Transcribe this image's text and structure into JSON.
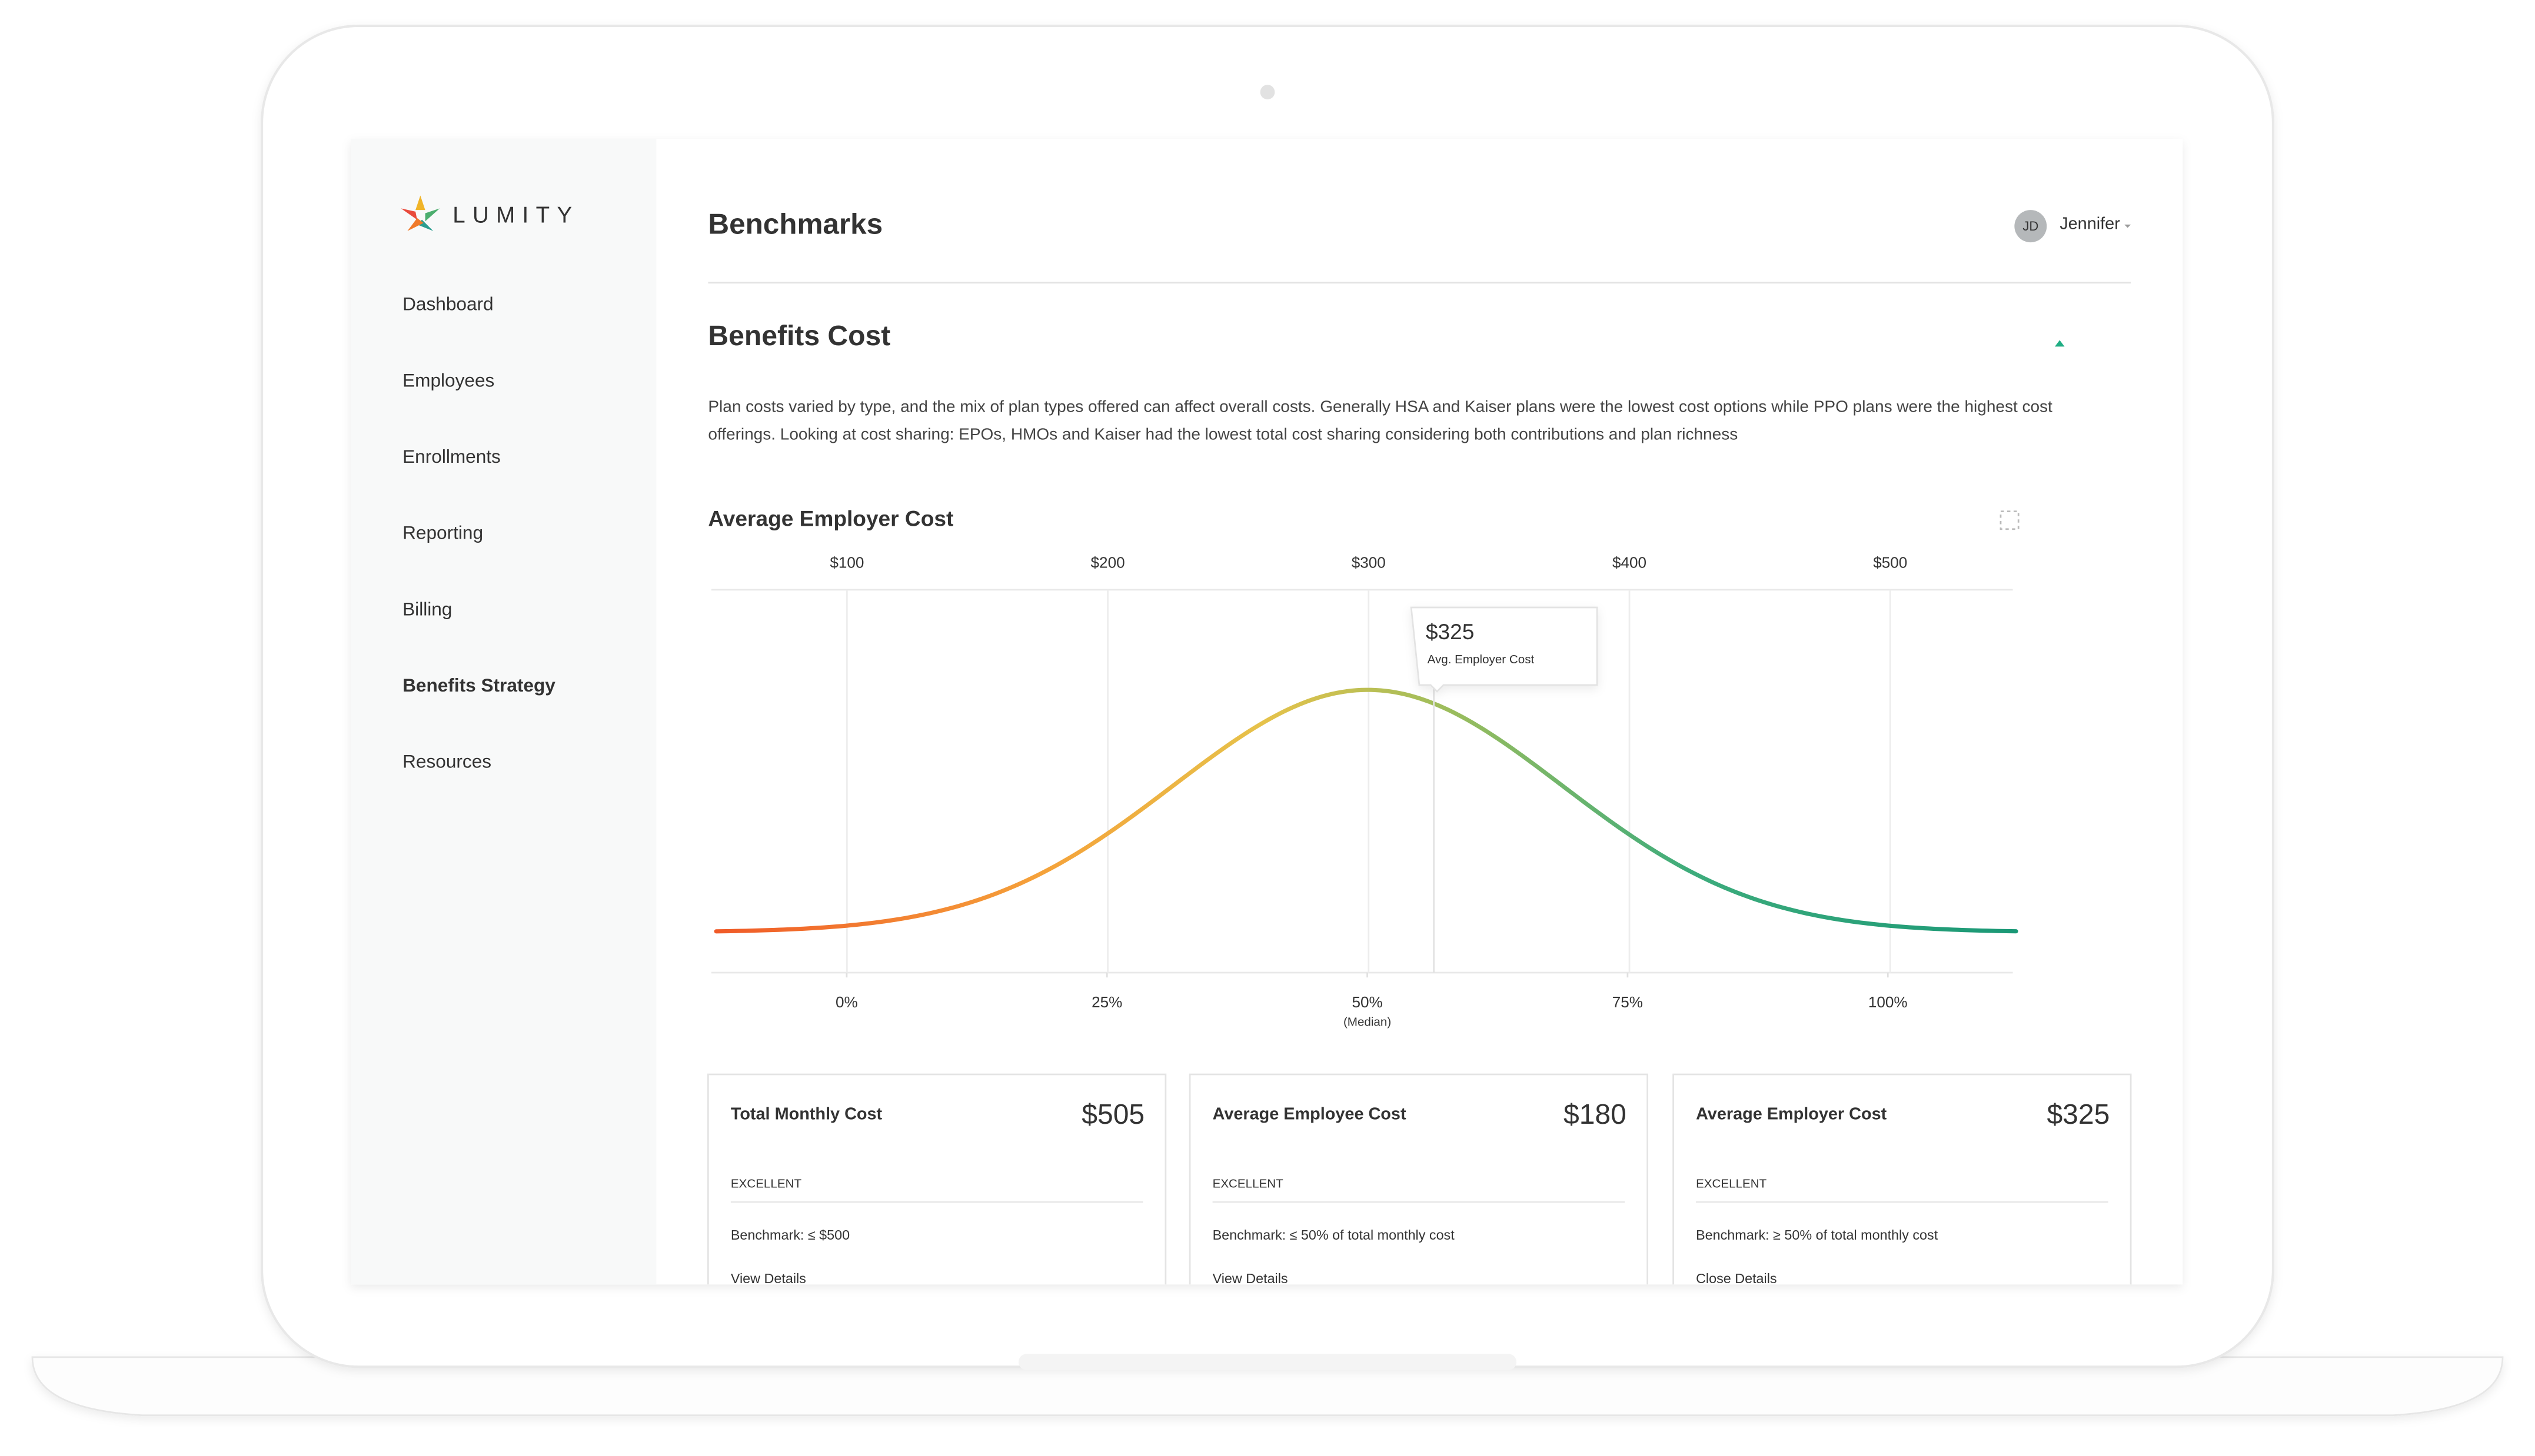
{
  "sidebar": {
    "logo": "LUMITY",
    "nav": [
      {
        "label": "Dashboard"
      },
      {
        "label": "Employees"
      },
      {
        "label": "Enrollments"
      },
      {
        "label": "Reporting"
      },
      {
        "label": "Billing"
      },
      {
        "label": "Benefits Strategy",
        "active": true
      },
      {
        "label": "Resources"
      }
    ]
  },
  "header": {
    "title": "Benchmarks",
    "user": {
      "initials": "JD",
      "name": "Jennifer"
    }
  },
  "section": {
    "title": "Benefits Cost",
    "description": "Plan costs varied by type, and the mix of plan types offered can affect overall costs. Generally HSA and Kaiser plans were the lowest cost options while PPO plans were the highest cost offerings. Looking at cost sharing: EPOs, HMOs and Kaiser had the lowest total cost sharing considering both contributions and plan richness"
  },
  "chart": {
    "title": "Average Employer Cost",
    "grid": true,
    "xlim": [
      48,
      547
    ],
    "xticks": [
      {
        "value": 100,
        "label": "$100"
      },
      {
        "value": 200,
        "label": "$200"
      },
      {
        "value": 300,
        "label": "$300"
      },
      {
        "value": 400,
        "label": "$400"
      },
      {
        "value": 500,
        "label": "$500"
      }
    ],
    "x2lim": [
      -13,
      112
    ],
    "x2ticks": [
      {
        "value": 0,
        "label": "0%"
      },
      {
        "value": 25,
        "label": "25%"
      },
      {
        "value": 50,
        "label": "50%"
      },
      {
        "value": 75,
        "label": "75%"
      },
      {
        "value": 100,
        "label": "100%"
      }
    ],
    "median_label": "(Median)",
    "marker": {
      "value": 325,
      "label": "$325",
      "caption": "Avg. Employer Cost"
    }
  },
  "cards": [
    {
      "title": "Total Monthly Cost",
      "value": "$505",
      "rating": "EXCELLENT",
      "benchmark": "Benchmark: ≤ $500",
      "link": "View Details"
    },
    {
      "title": "Average Employee Cost",
      "value": "$180",
      "rating": "EXCELLENT",
      "benchmark": "Benchmark: ≤ 50% of total monthly cost",
      "link": "View Details"
    },
    {
      "title": "Average Employer Cost",
      "value": "$325",
      "rating": "EXCELLENT",
      "benchmark": "Benchmark: ≥ 50% of total monthly cost",
      "link": "Close Details"
    }
  ]
}
